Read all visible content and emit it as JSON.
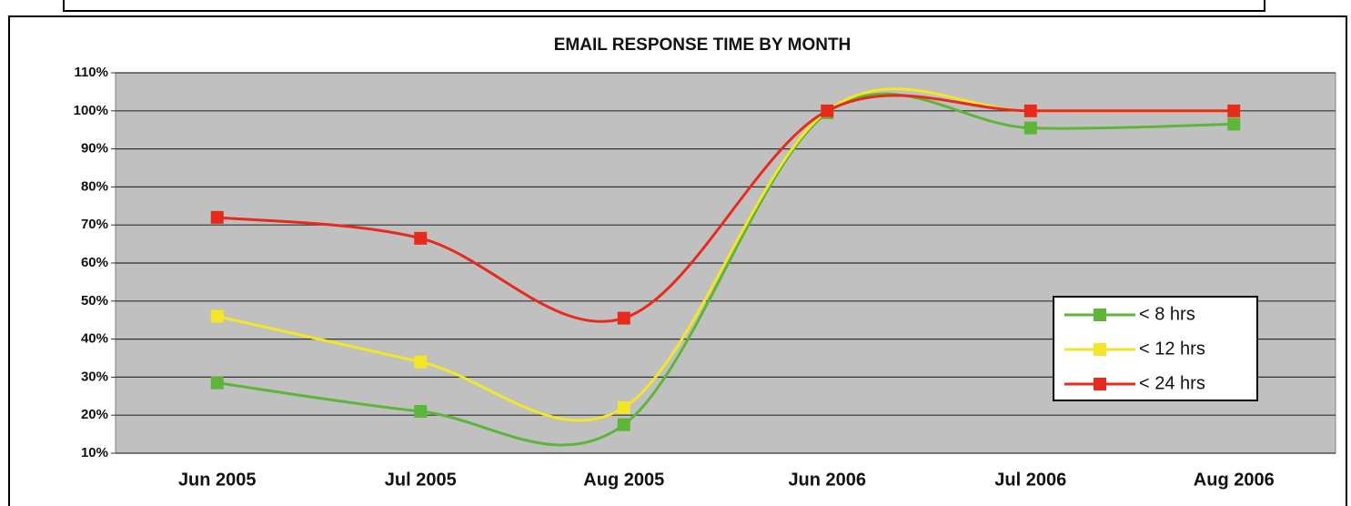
{
  "chart_data": {
    "type": "line",
    "smooth": true,
    "title": "EMAIL RESPONSE TIME BY MONTH",
    "categories": [
      "Jun 2005",
      "Jul 2005",
      "Aug 2005",
      "Jun 2006",
      "Jul 2006",
      "Aug 2006"
    ],
    "series": [
      {
        "name": "< 8 hrs",
        "color": "#5db53a",
        "values": [
          28.5,
          21,
          17.5,
          99.5,
          95.5,
          96.5
        ]
      },
      {
        "name": "< 12 hrs",
        "color": "#f2e626",
        "values": [
          46,
          34,
          22,
          100,
          100,
          100
        ]
      },
      {
        "name": "< 24 hrs",
        "color": "#e82a1c",
        "values": [
          72,
          66.5,
          45.5,
          100,
          100,
          100
        ]
      }
    ],
    "ylim": [
      10,
      110
    ],
    "yticks": [
      {
        "value": 10,
        "label": "10%"
      },
      {
        "value": 20,
        "label": "20%"
      },
      {
        "value": 30,
        "label": "30%"
      },
      {
        "value": 40,
        "label": "40%"
      },
      {
        "value": 50,
        "label": "50%"
      },
      {
        "value": 60,
        "label": "60%"
      },
      {
        "value": 70,
        "label": "70%"
      },
      {
        "value": 80,
        "label": "80%"
      },
      {
        "value": 90,
        "label": "90%"
      },
      {
        "value": 100,
        "label": "100%"
      },
      {
        "value": 110,
        "label": "110%"
      }
    ],
    "grid": true,
    "legend": "right"
  }
}
